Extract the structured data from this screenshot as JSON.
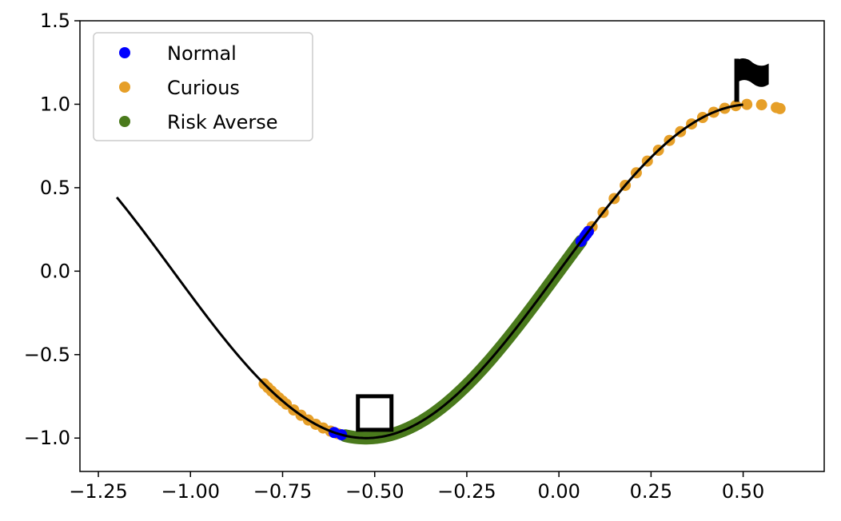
{
  "chart_data": {
    "type": "line",
    "title": "",
    "xlabel": "",
    "ylabel": "",
    "xlim": [
      -1.3,
      0.72
    ],
    "ylim": [
      -1.2,
      1.5
    ],
    "x_ticks": [
      -1.25,
      -1.0,
      -0.75,
      -0.5,
      -0.25,
      0.0,
      0.25,
      0.5
    ],
    "x_tick_labels": [
      "−1.25",
      "−1.00",
      "−0.75",
      "−0.50",
      "−0.25",
      "0.00",
      "0.25",
      "0.50"
    ],
    "y_ticks": [
      -1.0,
      -0.5,
      0.0,
      0.5,
      1.0,
      1.5
    ],
    "y_tick_labels": [
      "−1.0",
      "−0.5",
      "0.0",
      "0.5",
      "1.0",
      "1.5"
    ],
    "grid": false,
    "legend_position": "top-left",
    "curve": {
      "function": "sin(3x)",
      "x_range": [
        -1.2,
        0.5
      ],
      "color": "#000000"
    },
    "series": [
      {
        "name": "Normal",
        "type": "scatter",
        "color": "#0000ff",
        "x": [
          -0.61,
          -0.59,
          0.06,
          0.07,
          0.075,
          0.08
        ]
      },
      {
        "name": "Curious",
        "type": "scatter",
        "color": "#e69f28",
        "x": [
          -0.8,
          -0.79,
          -0.78,
          -0.77,
          -0.76,
          -0.75,
          -0.74,
          -0.72,
          -0.7,
          -0.68,
          -0.66,
          -0.64,
          -0.62,
          -0.6,
          0.08,
          0.09,
          0.12,
          0.15,
          0.18,
          0.21,
          0.24,
          0.27,
          0.3,
          0.33,
          0.36,
          0.39,
          0.42,
          0.45,
          0.48,
          0.51,
          0.55,
          0.59,
          0.6
        ]
      },
      {
        "name": "Risk Averse",
        "type": "band",
        "color": "#4a7a1c",
        "x_range": [
          -0.58,
          0.06
        ]
      }
    ],
    "annotations": [
      {
        "type": "square",
        "marker": "car",
        "x": -0.5,
        "y": -0.85
      },
      {
        "type": "flag",
        "marker": "goal",
        "x": 0.5,
        "y": 1.0
      }
    ]
  }
}
